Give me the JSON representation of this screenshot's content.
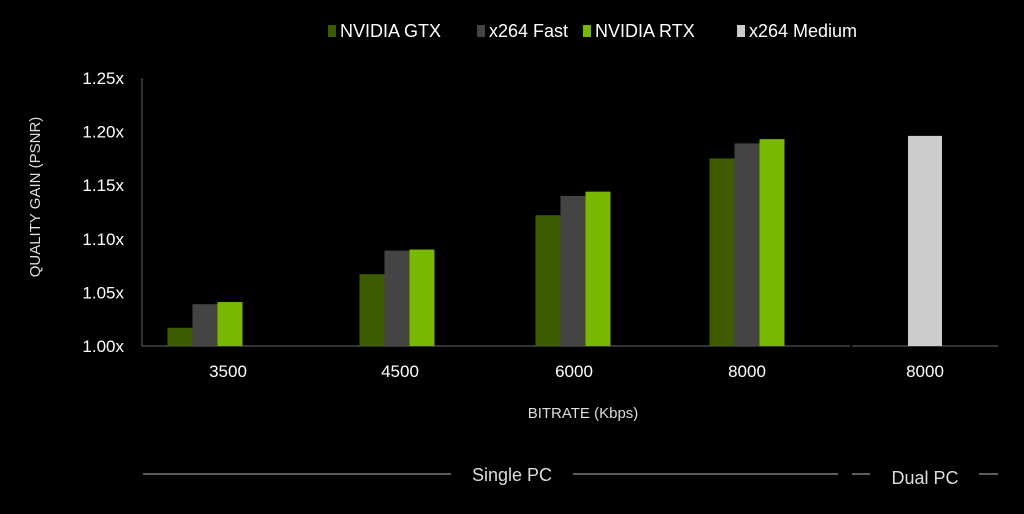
{
  "chart_data": {
    "type": "bar",
    "title": "",
    "xlabel": "BITRATE (Kbps)",
    "ylabel": "QUALITY GAIN (PSNR)",
    "ylim": [
      1.0,
      1.25
    ],
    "yticks": [
      "1.00x",
      "1.05x",
      "1.10x",
      "1.15x",
      "1.20x",
      "1.25x"
    ],
    "ytick_values": [
      1.0,
      1.05,
      1.1,
      1.15,
      1.2,
      1.25
    ],
    "grid": false,
    "legend_position": "top",
    "groups": [
      {
        "label": "Single PC",
        "categories": [
          "3500",
          "4500",
          "6000",
          "8000"
        ],
        "series": [
          {
            "name": "NVIDIA GTX",
            "color": "#3d5c00",
            "values": [
              1.017,
              1.067,
              1.122,
              1.175
            ]
          },
          {
            "name": "x264 Fast",
            "color": "#444444",
            "values": [
              1.039,
              1.089,
              1.14,
              1.189
            ]
          },
          {
            "name": "NVIDIA RTX",
            "color": "#76b900",
            "values": [
              1.041,
              1.09,
              1.144,
              1.193
            ]
          }
        ]
      },
      {
        "label": "Dual PC",
        "categories": [
          "8000"
        ],
        "series": [
          {
            "name": "x264 Medium",
            "color": "#cccccc",
            "values": [
              1.196
            ]
          }
        ]
      }
    ],
    "legend": [
      {
        "name": "NVIDIA GTX",
        "color": "#3d5c00"
      },
      {
        "name": "x264 Fast",
        "color": "#444444"
      },
      {
        "name": "NVIDIA RTX",
        "color": "#76b900"
      },
      {
        "name": "x264 Medium",
        "color": "#cccccc"
      }
    ]
  }
}
